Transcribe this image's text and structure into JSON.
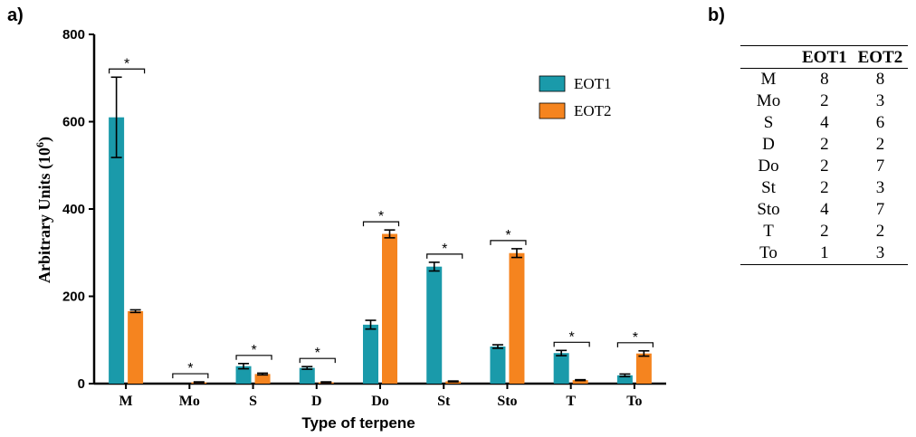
{
  "panel_a_label": "a)",
  "panel_b_label": "b)",
  "colors": {
    "EOT1": "#1a9aaa",
    "EOT2": "#f5841f"
  },
  "chart_data": {
    "type": "bar",
    "title": "",
    "xlabel": "Type of terpene",
    "ylabel": "Arbitrary Units (10",
    "ylabel_superscript": "6",
    "ylabel_suffix": ")",
    "ylim": [
      0,
      800
    ],
    "yticks": [
      0,
      200,
      400,
      600,
      800
    ],
    "categories": [
      "M",
      "Mo",
      "S",
      "D",
      "Do",
      "St",
      "Sto",
      "T",
      "To"
    ],
    "legend_position": "top-right",
    "series": [
      {
        "name": "EOT1",
        "values": [
          610,
          0,
          40,
          36,
          135,
          268,
          85,
          70,
          19
        ],
        "errors": [
          92,
          0,
          6,
          3,
          10,
          10,
          4,
          6,
          3
        ]
      },
      {
        "name": "EOT2",
        "values": [
          166,
          3,
          22,
          3,
          343,
          5,
          299,
          8,
          69
        ],
        "errors": [
          3,
          1,
          2,
          1,
          9,
          1,
          10,
          1,
          6
        ]
      }
    ],
    "significance_label": "*",
    "significant": [
      true,
      true,
      true,
      true,
      true,
      true,
      true,
      true,
      true
    ]
  },
  "table": {
    "headers": [
      "",
      "EOT1",
      "EOT2"
    ],
    "rows": [
      [
        "M",
        "8",
        "8"
      ],
      [
        "Mo",
        "2",
        "3"
      ],
      [
        "S",
        "4",
        "6"
      ],
      [
        "D",
        "2",
        "2"
      ],
      [
        "Do",
        "2",
        "7"
      ],
      [
        "St",
        "2",
        "3"
      ],
      [
        "Sto",
        "4",
        "7"
      ],
      [
        "T",
        "2",
        "2"
      ],
      [
        "To",
        "1",
        "3"
      ]
    ]
  }
}
